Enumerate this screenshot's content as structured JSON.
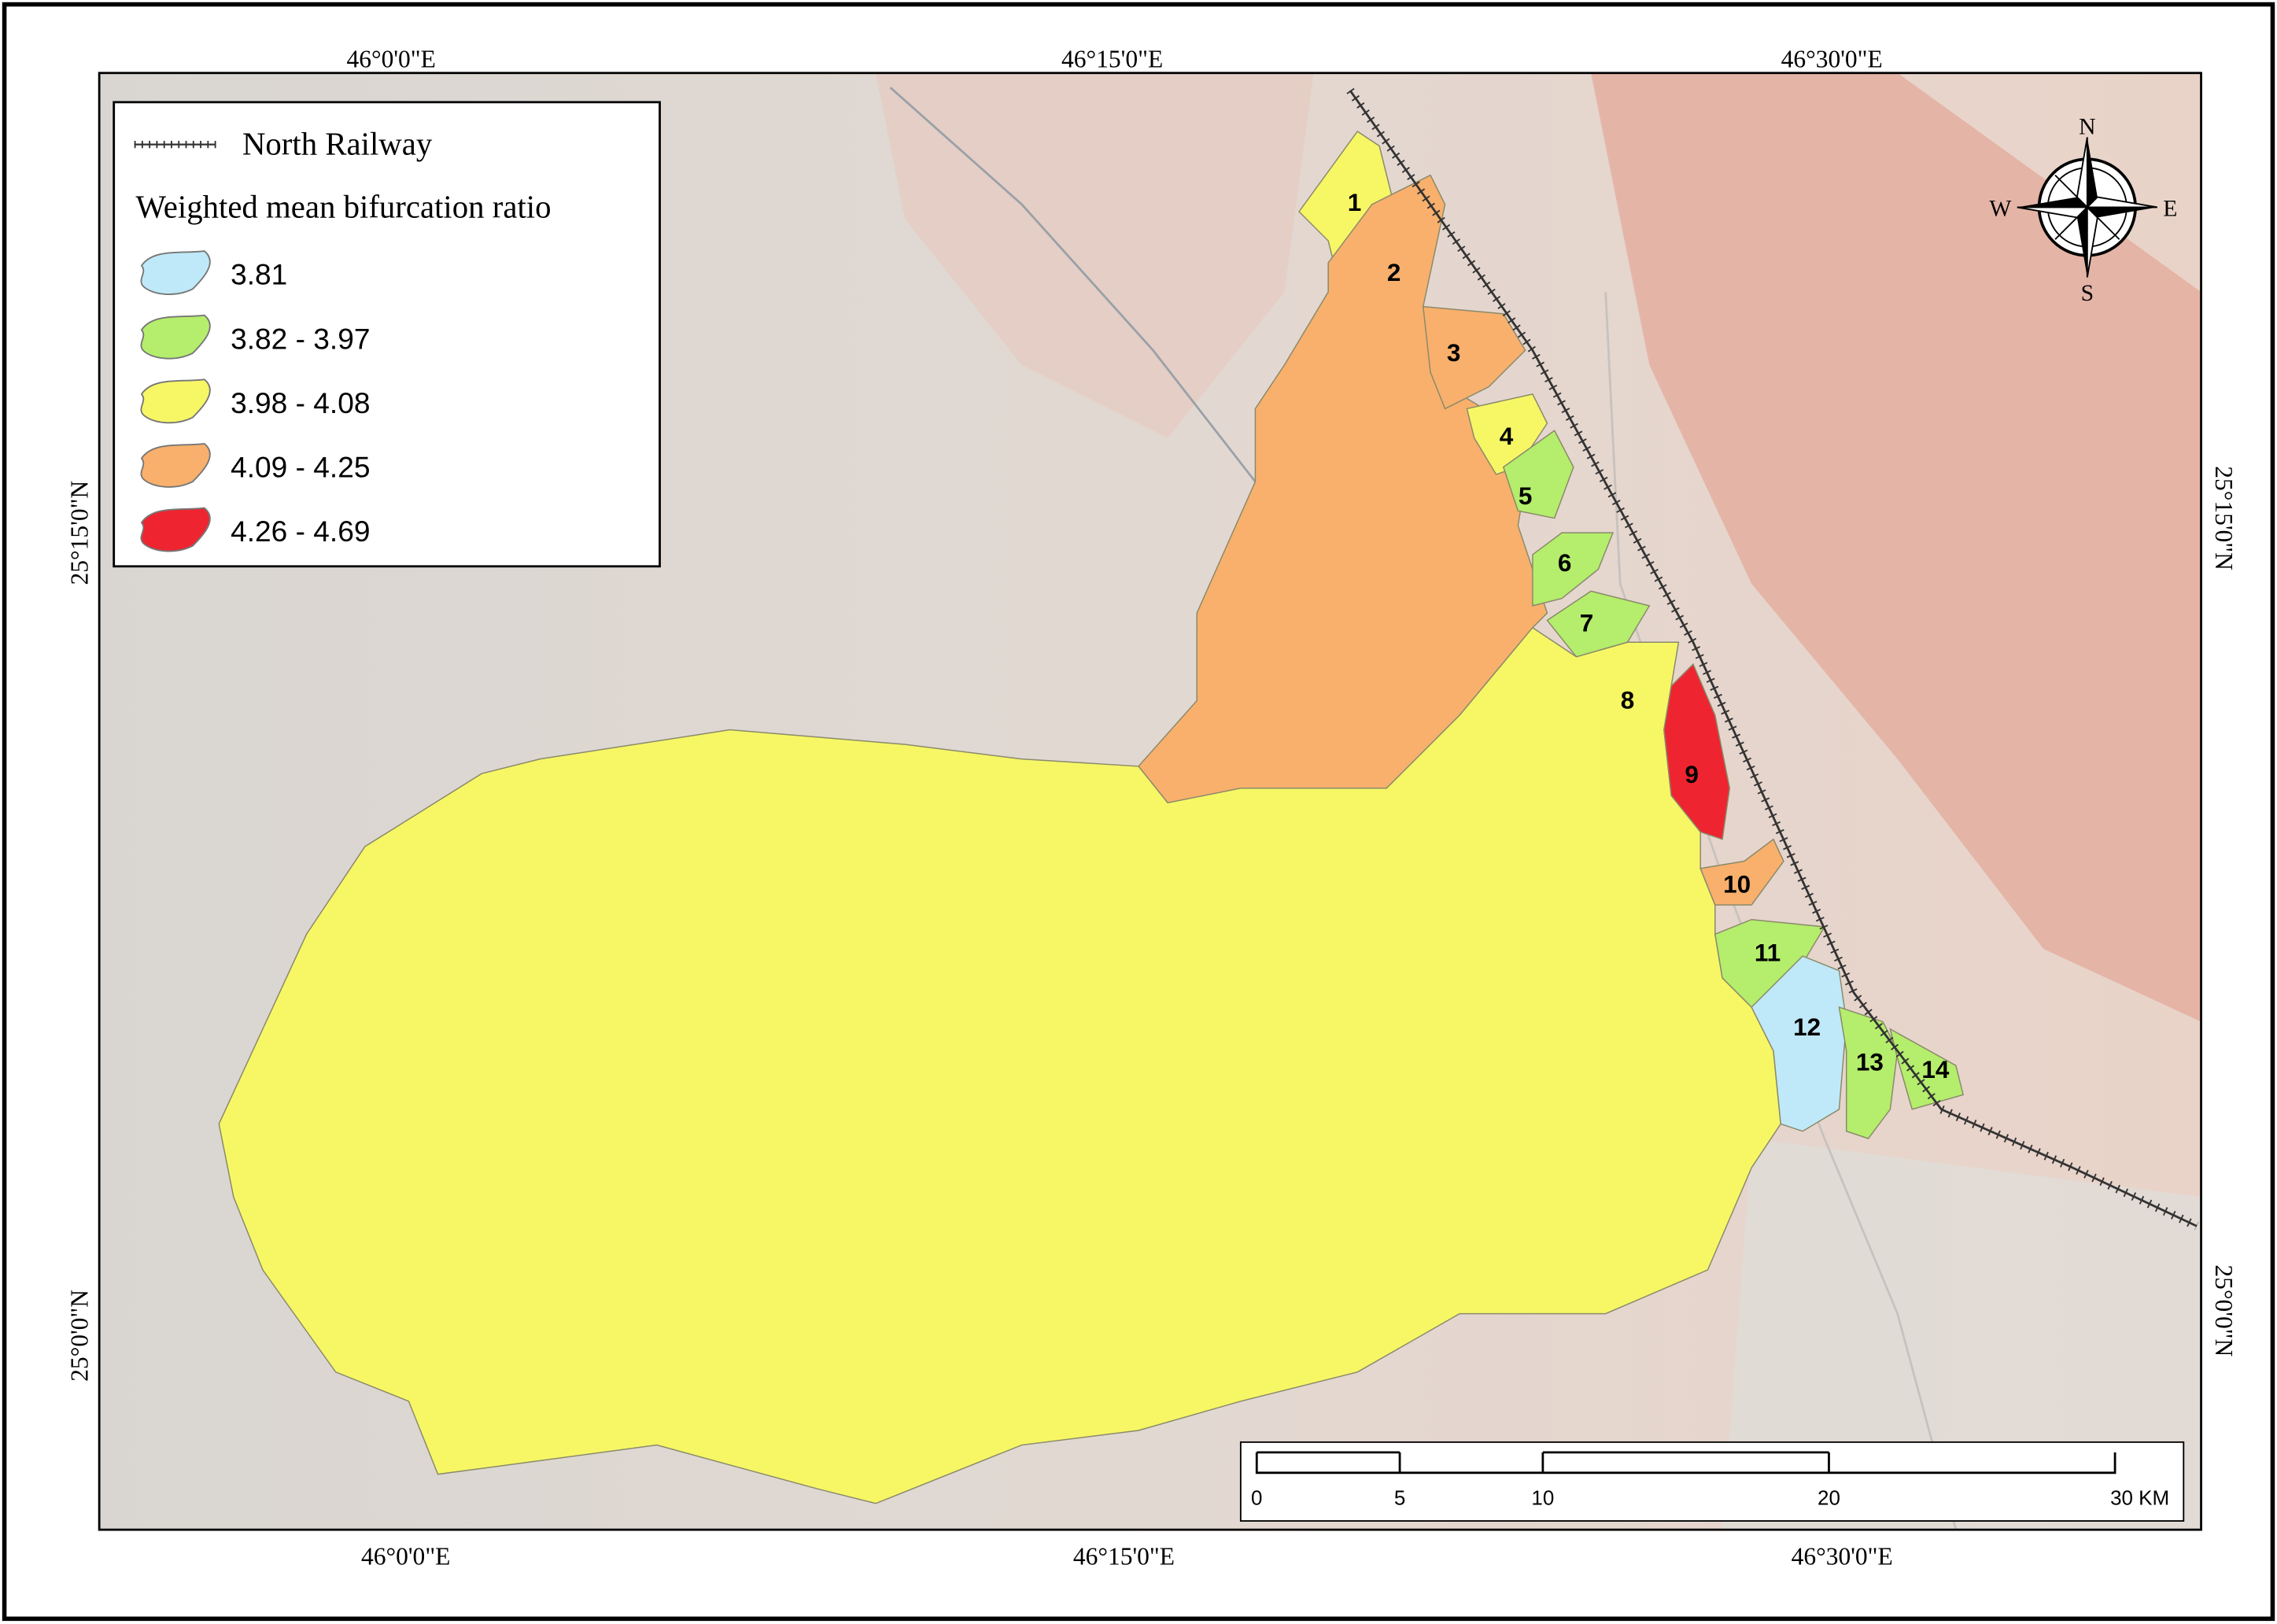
{
  "graticule": {
    "top": [
      "46°0'0\"E",
      "46°15'0\"E",
      "46°30'0\"E"
    ],
    "bottom": [
      "46°0'0\"E",
      "46°15'0\"E",
      "46°30'0\"E"
    ],
    "left": [
      "25°15'0\"N",
      "25°0'0\"N"
    ],
    "right": [
      "25°15'0\"N",
      "25°0'0\"N"
    ]
  },
  "legend": {
    "railway": "North Railway",
    "title": "Weighted mean bifurcation ratio",
    "classes": [
      {
        "label": "3.81",
        "color": "#bfe9f8"
      },
      {
        "label": "3.82 - 3.97",
        "color": "#b4ee6c"
      },
      {
        "label": "3.98 - 4.08",
        "color": "#f7f766"
      },
      {
        "label": "4.09 - 4.25",
        "color": "#f8b06c"
      },
      {
        "label": "4.26 - 4.69",
        "color": "#ee2530"
      }
    ]
  },
  "basins": [
    {
      "label": "1",
      "color": "#f7f766"
    },
    {
      "label": "2",
      "color": "#f8b06c"
    },
    {
      "label": "3",
      "color": "#f8b06c"
    },
    {
      "label": "4",
      "color": "#f7f766"
    },
    {
      "label": "5",
      "color": "#b4ee6c"
    },
    {
      "label": "6",
      "color": "#b4ee6c"
    },
    {
      "label": "7",
      "color": "#b4ee6c"
    },
    {
      "label": "8",
      "color": "#f7f766"
    },
    {
      "label": "9",
      "color": "#ee2530"
    },
    {
      "label": "10",
      "color": "#f8b06c"
    },
    {
      "label": "11",
      "color": "#b4ee6c"
    },
    {
      "label": "12",
      "color": "#bfe9f8"
    },
    {
      "label": "13",
      "color": "#b4ee6c"
    },
    {
      "label": "14",
      "color": "#b4ee6c"
    }
  ],
  "scale_bar": {
    "labels": [
      "0",
      "5",
      "10",
      "20",
      "30 KM"
    ]
  },
  "compass": {
    "n": "N",
    "e": "E",
    "s": "S",
    "w": "W"
  }
}
